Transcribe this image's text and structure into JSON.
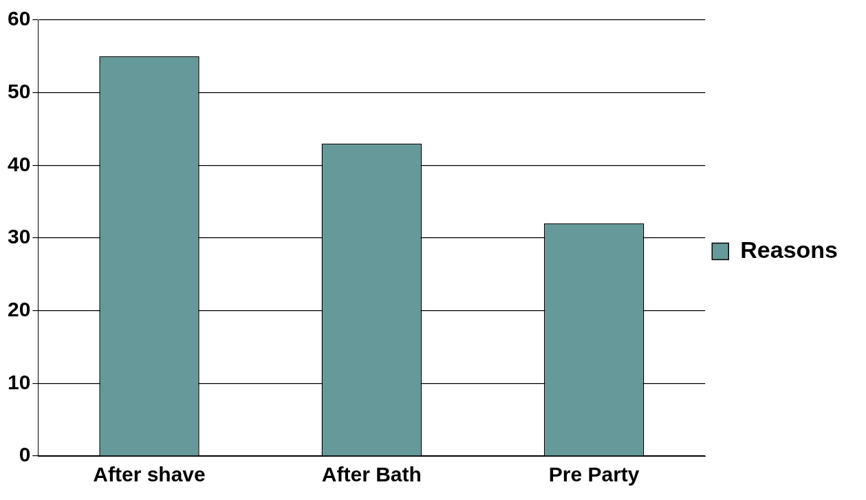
{
  "chart_data": {
    "type": "bar",
    "categories": [
      "After shave",
      "After Bath",
      "Pre Party"
    ],
    "series": [
      {
        "name": "Reasons",
        "color": "#669999",
        "values": [
          55,
          43,
          32
        ]
      }
    ],
    "ylim": [
      0,
      60
    ],
    "yticks": [
      0,
      10,
      20,
      30,
      40,
      50,
      60
    ],
    "grid": "y",
    "legend": "right"
  }
}
